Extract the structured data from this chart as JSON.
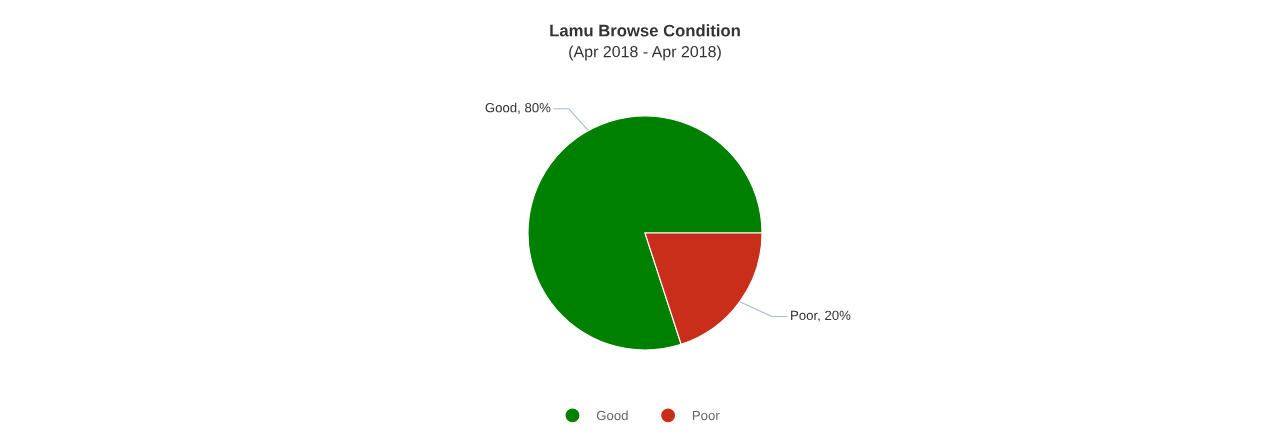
{
  "chart_data": {
    "type": "pie",
    "title": "Lamu Browse Condition",
    "subtitle": "(Apr 2018 - Apr 2018)",
    "categories": [
      "Good",
      "Poor"
    ],
    "values": [
      80,
      20
    ],
    "colors": [
      "#008000",
      "#c92e1a"
    ],
    "value_labels": [
      "Good, 80%",
      "Poor, 20%"
    ],
    "legend": "bottom"
  }
}
